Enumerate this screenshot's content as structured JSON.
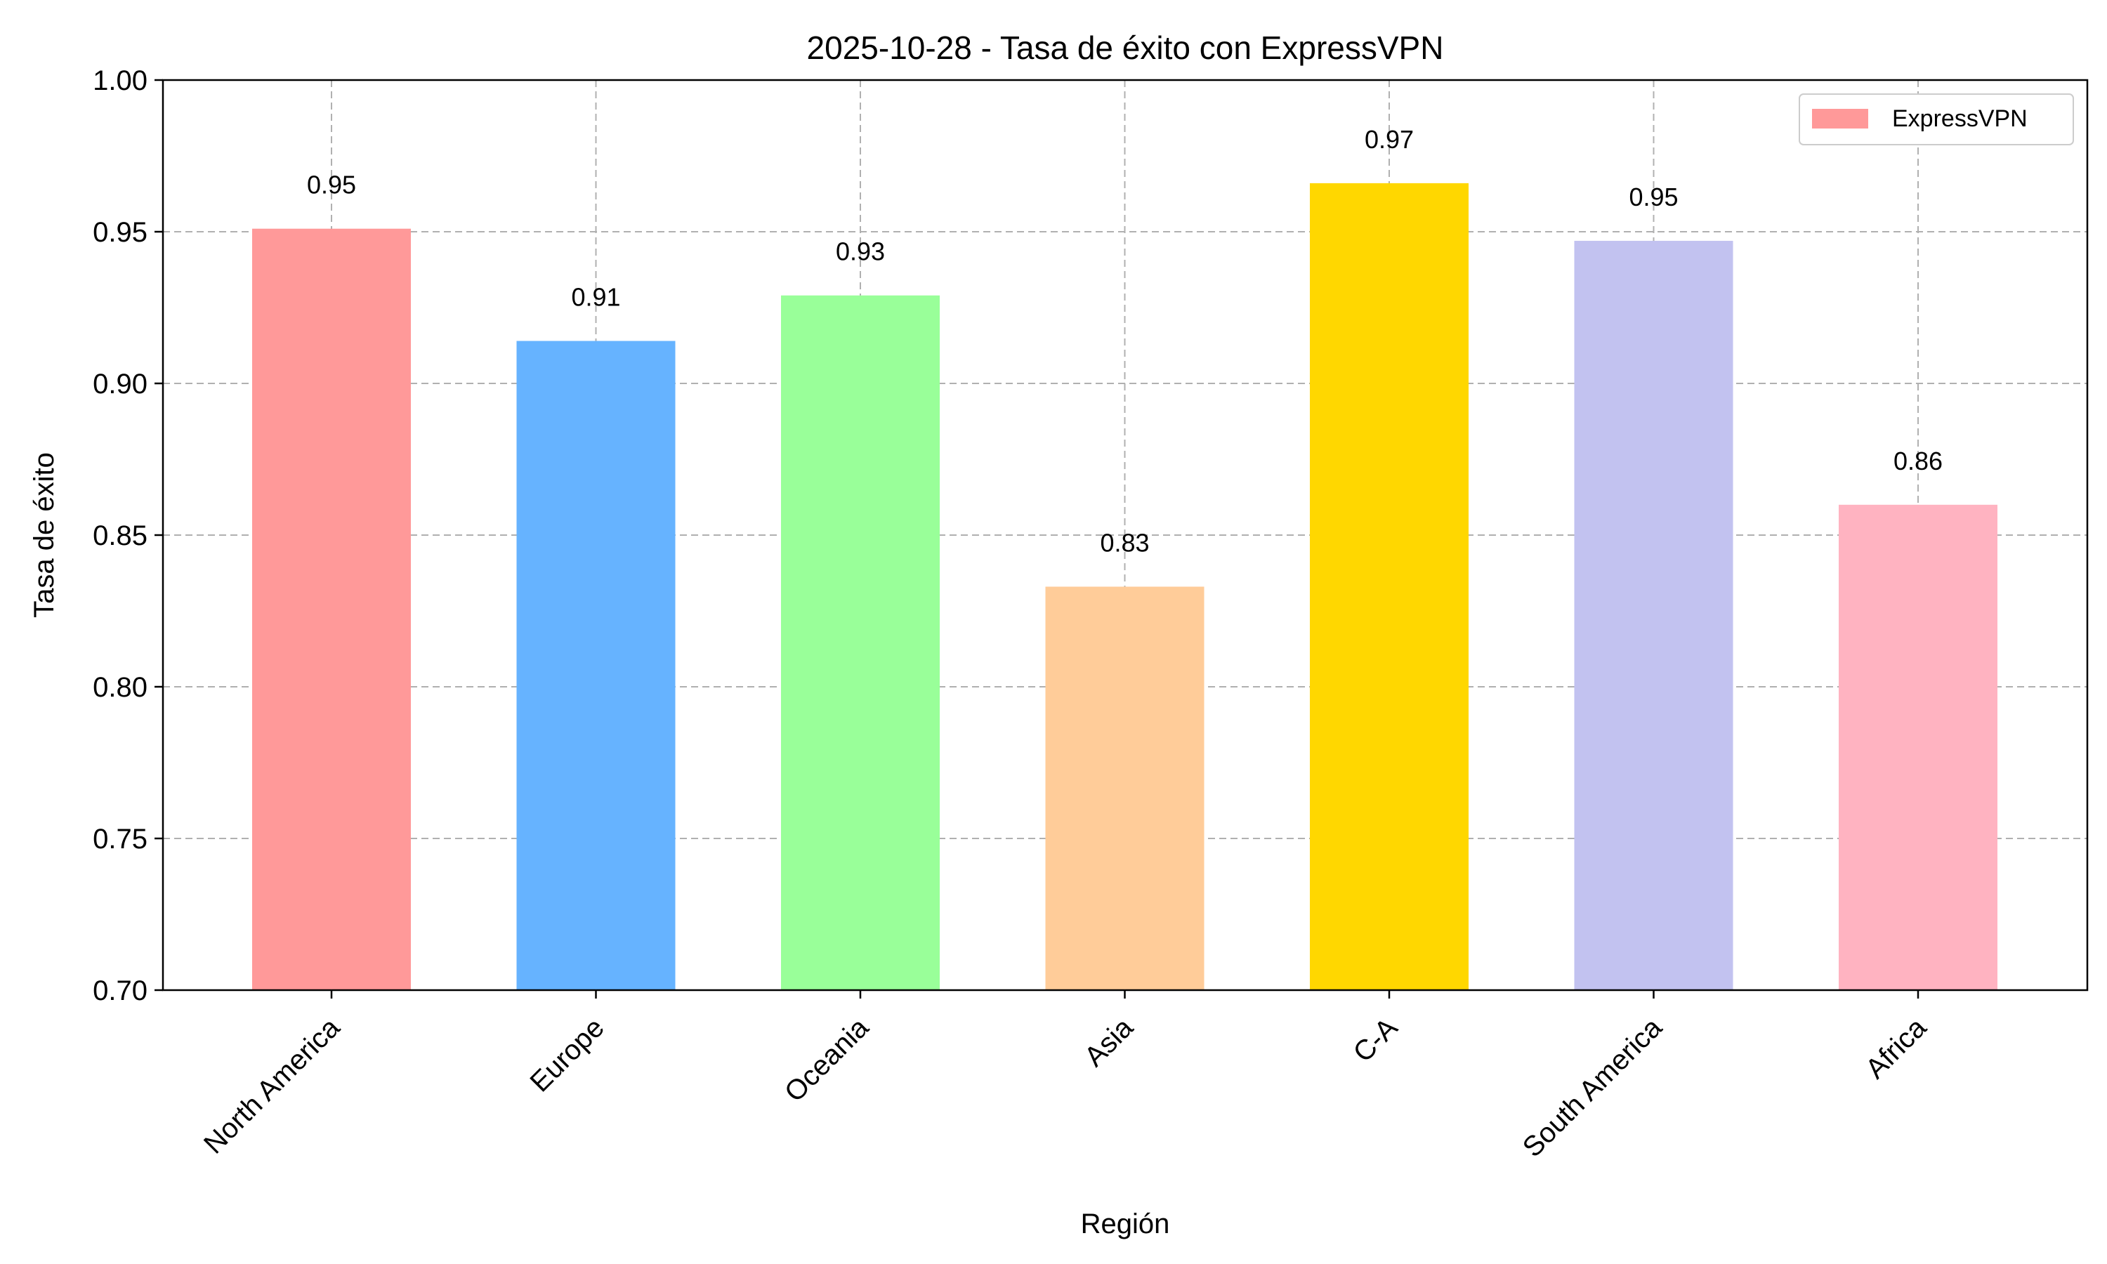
{
  "chart_data": {
    "type": "bar",
    "title": "2025-10-28 - Tasa de éxito con ExpressVPN",
    "xlabel": "Región",
    "ylabel": "Tasa de éxito",
    "ylim": [
      0.7,
      1.0
    ],
    "yticks": [
      "0.70",
      "0.75",
      "0.80",
      "0.85",
      "0.90",
      "0.95",
      "1.00"
    ],
    "categories": [
      "North America",
      "Europe",
      "Oceania",
      "Asia",
      "C-A",
      "South America",
      "Africa"
    ],
    "values": [
      0.951,
      0.914,
      0.929,
      0.833,
      0.966,
      0.947,
      0.86
    ],
    "value_labels": [
      "0.95",
      "0.91",
      "0.93",
      "0.83",
      "0.97",
      "0.95",
      "0.86"
    ],
    "colors": [
      "#ff9999",
      "#66b3ff",
      "#99ff99",
      "#ffcc99",
      "#ffd700",
      "#c2c2f0",
      "#ffb3c1"
    ],
    "grid": true,
    "legend": {
      "position": "top-right",
      "entries": [
        {
          "name": "ExpressVPN",
          "color": "#ff9999"
        }
      ]
    }
  }
}
